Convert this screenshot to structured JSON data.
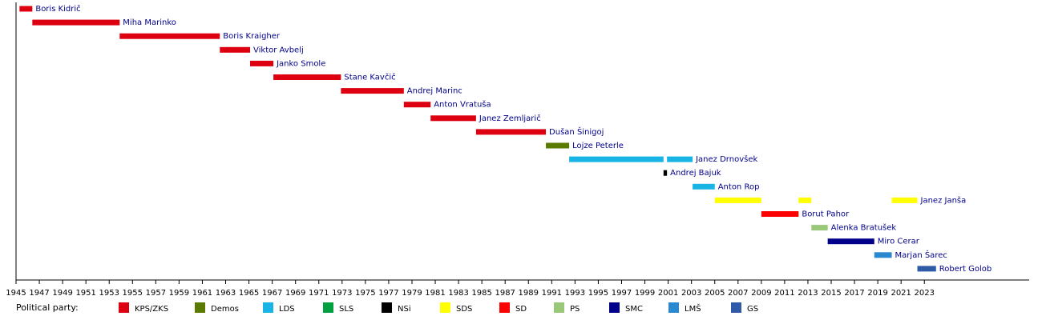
{
  "chart_data": {
    "type": "timeline",
    "legend_title": "Political party:",
    "parties": [
      {
        "name": "KPS/ZKS",
        "color": "#dd0010"
      },
      {
        "name": "Demos",
        "color": "#5a7a00"
      },
      {
        "name": "LDS",
        "color": "#18b4e6"
      },
      {
        "name": "SLS",
        "color": "#00a040"
      },
      {
        "name": "NSi",
        "color": "#000000"
      },
      {
        "name": "SDS",
        "color": "#ffff00"
      },
      {
        "name": "SD",
        "color": "#ff0000"
      },
      {
        "name": "PS",
        "color": "#98c878"
      },
      {
        "name": "SMC",
        "color": "#00008b"
      },
      {
        "name": "LMŠ",
        "color": "#2a88d0"
      },
      {
        "name": "GS",
        "color": "#2e5aa8"
      }
    ],
    "rows": [
      {
        "name": "Boris Kidrič",
        "terms": [
          {
            "start": 1945.3,
            "end": 1946.4,
            "party": "KPS/ZKS"
          }
        ]
      },
      {
        "name": "Miha Marinko",
        "terms": [
          {
            "start": 1946.4,
            "end": 1953.9,
            "party": "KPS/ZKS"
          }
        ]
      },
      {
        "name": "Boris Kraigher",
        "terms": [
          {
            "start": 1953.9,
            "end": 1962.5,
            "party": "KPS/ZKS"
          }
        ]
      },
      {
        "name": "Viktor Avbelj",
        "terms": [
          {
            "start": 1962.5,
            "end": 1965.1,
            "party": "KPS/ZKS"
          }
        ]
      },
      {
        "name": "Janko Smole",
        "terms": [
          {
            "start": 1965.1,
            "end": 1967.1,
            "party": "KPS/ZKS"
          }
        ]
      },
      {
        "name": "Stane Kavčič",
        "terms": [
          {
            "start": 1967.1,
            "end": 1972.9,
            "party": "KPS/ZKS"
          }
        ]
      },
      {
        "name": "Andrej Marinc",
        "terms": [
          {
            "start": 1972.9,
            "end": 1978.3,
            "party": "KPS/ZKS"
          }
        ]
      },
      {
        "name": "Anton Vratuša",
        "terms": [
          {
            "start": 1978.3,
            "end": 1980.6,
            "party": "KPS/ZKS"
          }
        ]
      },
      {
        "name": "Janez Zemljarič",
        "terms": [
          {
            "start": 1980.6,
            "end": 1984.5,
            "party": "KPS/ZKS"
          }
        ]
      },
      {
        "name": "Dušan Šinigoj",
        "terms": [
          {
            "start": 1984.5,
            "end": 1990.5,
            "party": "KPS/ZKS"
          }
        ]
      },
      {
        "name": "Lojze Peterle",
        "terms": [
          {
            "start": 1990.5,
            "end": 1992.5,
            "party": "Demos"
          }
        ]
      },
      {
        "name": "Janez Drnovšek",
        "terms": [
          {
            "start": 1992.5,
            "end": 2000.6,
            "party": "LDS"
          },
          {
            "start": 2000.9,
            "end": 2003.1,
            "party": "LDS"
          }
        ]
      },
      {
        "name": "Andrej Bajuk",
        "terms": [
          {
            "start": 2000.6,
            "end": 2000.9,
            "party": "NSi"
          }
        ]
      },
      {
        "name": "Anton Rop",
        "terms": [
          {
            "start": 2003.1,
            "end": 2005.0,
            "party": "LDS"
          }
        ]
      },
      {
        "name": "Janez Janša",
        "terms": [
          {
            "start": 2005.0,
            "end": 2009.0,
            "party": "SDS"
          },
          {
            "start": 2012.2,
            "end": 2013.3,
            "party": "SDS"
          },
          {
            "start": 2020.2,
            "end": 2022.4,
            "party": "SDS"
          }
        ]
      },
      {
        "name": "Borut Pahor",
        "terms": [
          {
            "start": 2009.0,
            "end": 2012.2,
            "party": "SD"
          }
        ]
      },
      {
        "name": "Alenka Bratušek",
        "terms": [
          {
            "start": 2013.3,
            "end": 2014.7,
            "party": "PS"
          }
        ]
      },
      {
        "name": "Miro Cerar",
        "terms": [
          {
            "start": 2014.7,
            "end": 2018.7,
            "party": "SMC"
          }
        ]
      },
      {
        "name": "Marjan Šarec",
        "terms": [
          {
            "start": 2018.7,
            "end": 2020.2,
            "party": "LMŠ"
          }
        ]
      },
      {
        "name": "Robert Golob",
        "terms": [
          {
            "start": 2022.4,
            "end": 2024.0,
            "party": "GS"
          }
        ]
      }
    ],
    "xlim": [
      1945,
      2032
    ],
    "xticks": [
      1945,
      1947,
      1949,
      1951,
      1953,
      1955,
      1957,
      1959,
      1961,
      1963,
      1965,
      1967,
      1969,
      1971,
      1973,
      1975,
      1977,
      1979,
      1981,
      1983,
      1985,
      1987,
      1989,
      1991,
      1993,
      1995,
      1997,
      1999,
      2001,
      2003,
      2005,
      2007,
      2009,
      2011,
      2013,
      2015,
      2017,
      2019,
      2021,
      2023
    ]
  }
}
